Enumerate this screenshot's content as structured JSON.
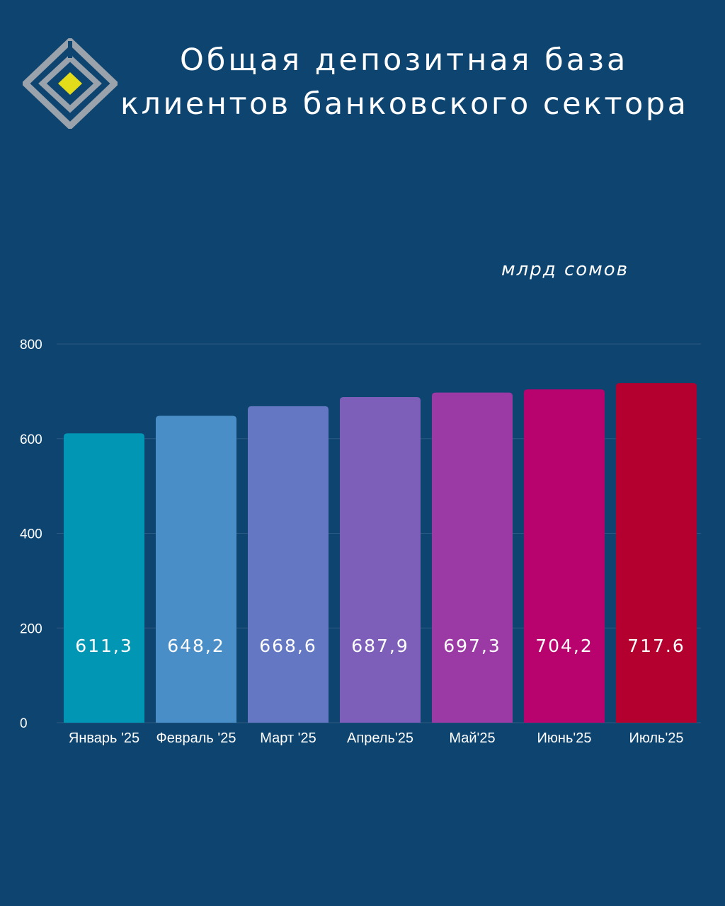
{
  "title": {
    "line1": "Общая депозитная база",
    "line2": "клиентов банковского сектора"
  },
  "logo": {
    "icon": "diamond-logo-icon",
    "colors": {
      "frame": "#9aa3ab",
      "center": "#e3dc1a"
    }
  },
  "unit_label": "млрд сомов",
  "colors": {
    "background": "#0e4470",
    "gridline": "#2c5a82"
  },
  "chart_data": {
    "type": "bar",
    "categories": [
      "Январь '25",
      "Февраль '25",
      "Март '25",
      "Апрель'25",
      "Май'25",
      "Июнь'25",
      "Июль'25"
    ],
    "values": [
      611.3,
      648.2,
      668.6,
      687.9,
      697.3,
      704.2,
      717.6
    ],
    "data_labels": [
      "611,3",
      "648,2",
      "668,6",
      "687,9",
      "697,3",
      "704,2",
      "717.6"
    ],
    "bar_colors": [
      "#0096b4",
      "#4a8ec8",
      "#6377c2",
      "#7d5fba",
      "#9b3aa5",
      "#b8036e",
      "#b3002f"
    ],
    "ylim": [
      0,
      800
    ],
    "yticks": [
      0,
      200,
      400,
      600,
      800
    ],
    "ylabel": "млрд сомов",
    "grid": true
  }
}
